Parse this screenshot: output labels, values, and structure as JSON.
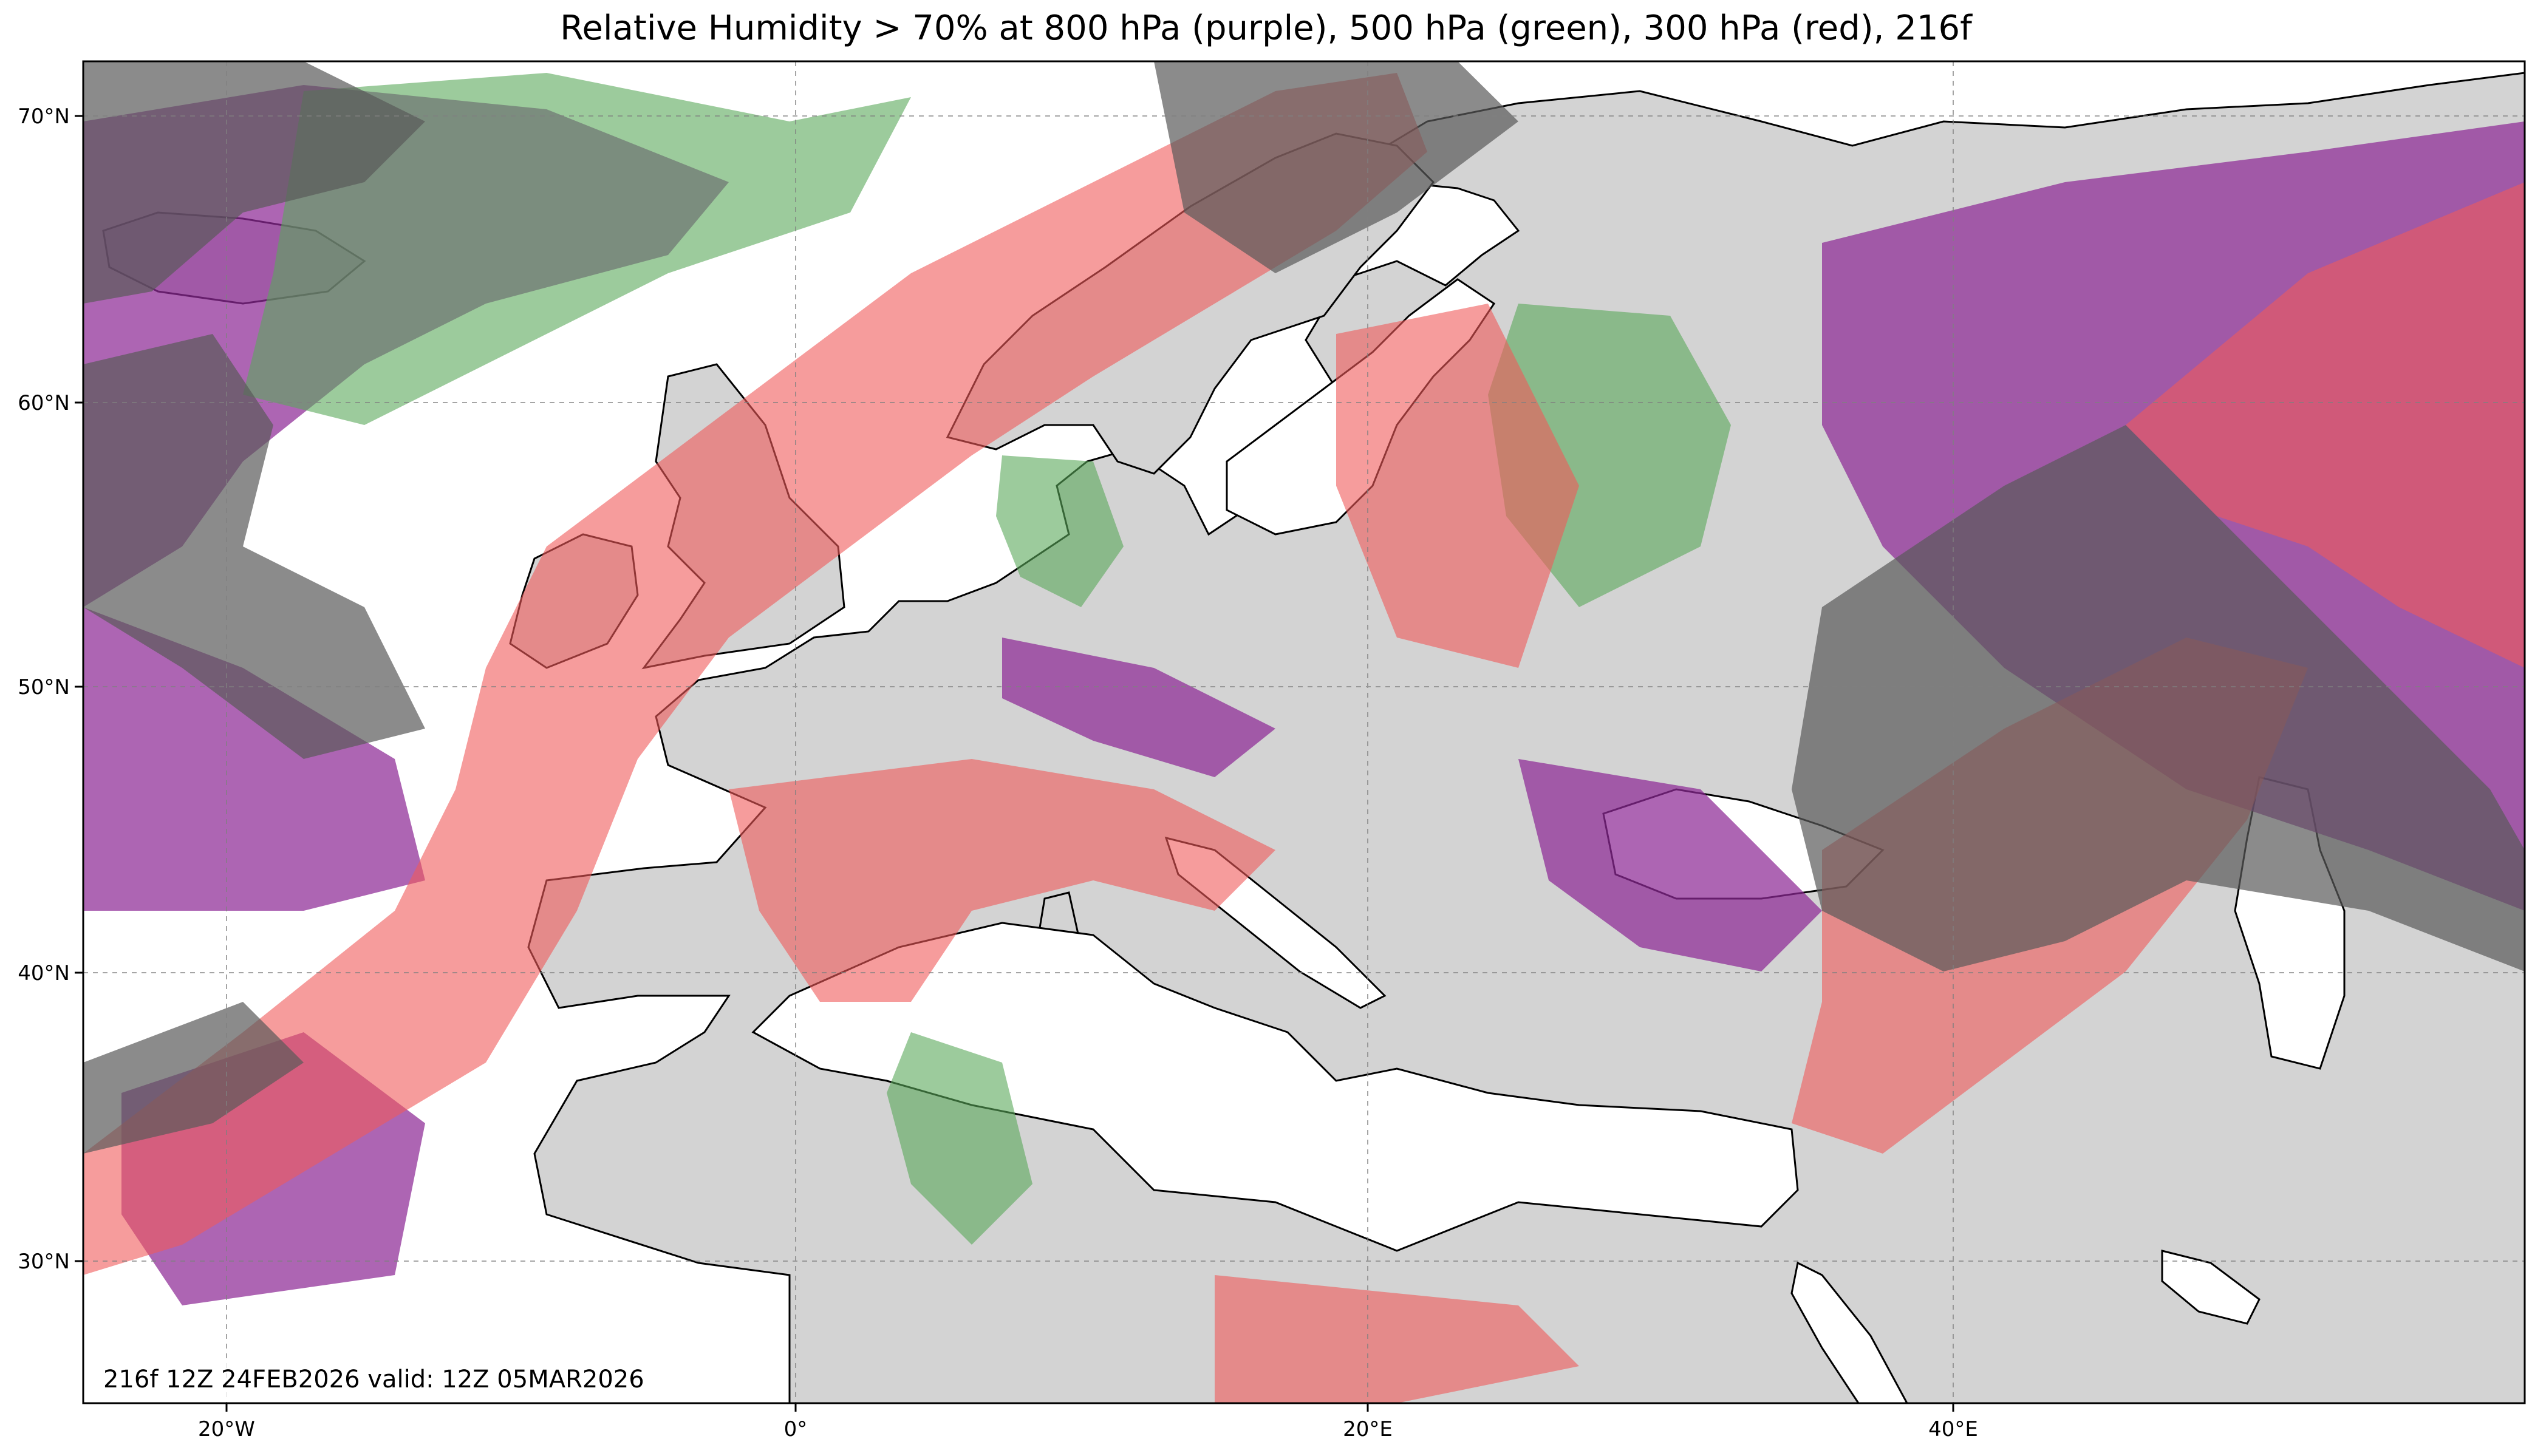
{
  "title": "Relative Humidity > 70% at 800 hPa (purple), 500 hPa (green), 300 hPa (red), 216f",
  "valid_text": "216f 12Z 24FEB2026 valid: 12Z 05MAR2026",
  "map": {
    "projection": "plate-carree",
    "lon_range": [
      -25,
      60
    ],
    "lat_range": [
      25,
      72
    ],
    "x_ticks": [
      {
        "lon": -20,
        "label": "20°W"
      },
      {
        "lon": 0,
        "label": "0°"
      },
      {
        "lon": 20,
        "label": "20°E"
      },
      {
        "lon": 40,
        "label": "40°E"
      }
    ],
    "y_ticks": [
      {
        "lat": 30,
        "label": "30°N"
      },
      {
        "lat": 40,
        "label": "40°N"
      },
      {
        "lat": 50,
        "label": "50°N"
      },
      {
        "lat": 60,
        "label": "60°N"
      },
      {
        "lat": 70,
        "label": "70°N"
      }
    ],
    "grid": true,
    "colors": {
      "land": "#d3d3d3",
      "ocean": "#ffffff",
      "rh_800": "#8e2a96",
      "rh_500": "#5aa85a",
      "rh_300": "#f05a5a",
      "overlap": "#5a5a5a"
    }
  },
  "layers": [
    {
      "name": "800 hPa",
      "color": "purple",
      "threshold": "> 70%"
    },
    {
      "name": "500 hPa",
      "color": "green",
      "threshold": "> 70%"
    },
    {
      "name": "300 hPa",
      "color": "red",
      "threshold": "> 70%"
    }
  ]
}
